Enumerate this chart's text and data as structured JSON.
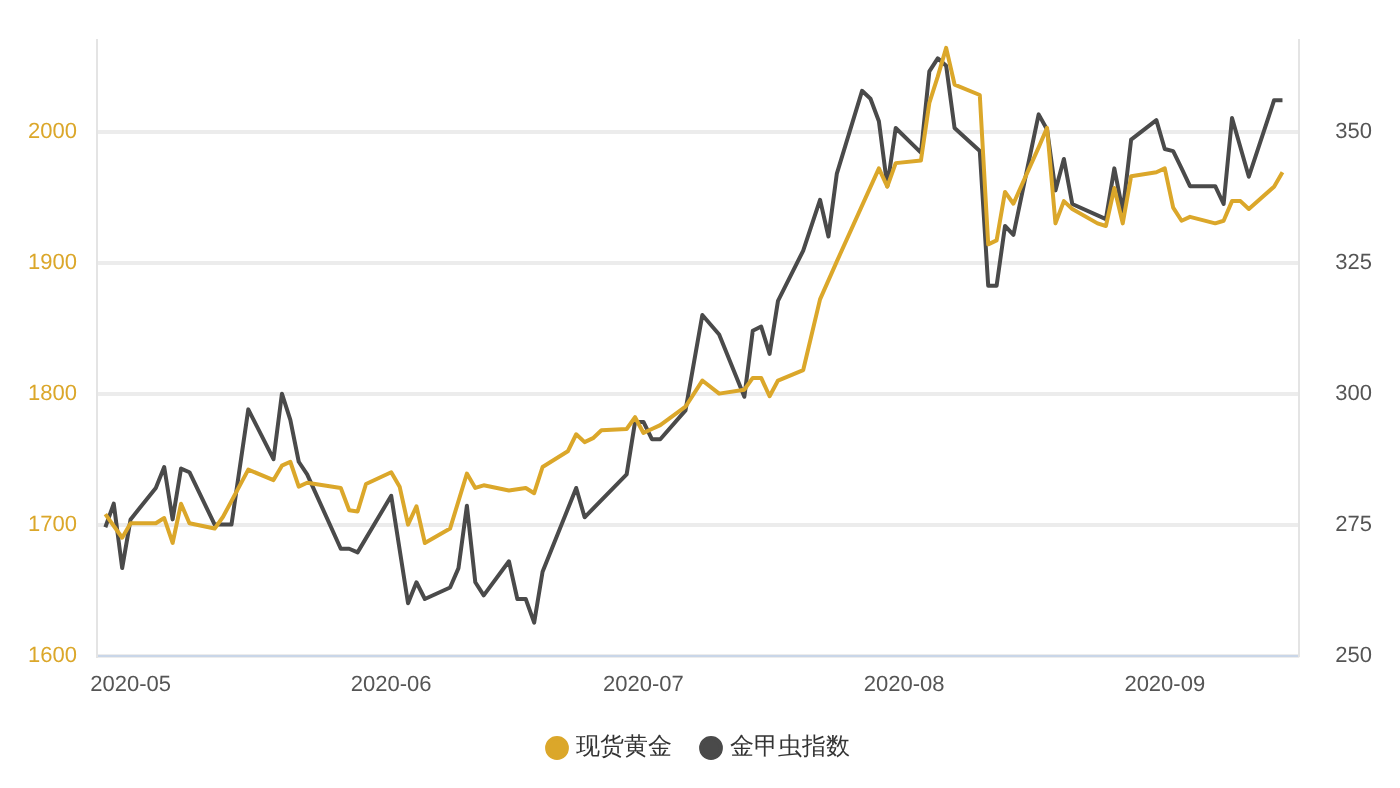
{
  "chart_data": {
    "type": "line",
    "xlim": [
      "2020-04-27",
      "2020-09-17"
    ],
    "xticks": [
      {
        "value": "2020-05-01",
        "label": "2020-05"
      },
      {
        "value": "2020-06-01",
        "label": "2020-06"
      },
      {
        "value": "2020-07-01",
        "label": "2020-07"
      },
      {
        "value": "2020-08-01",
        "label": "2020-08"
      },
      {
        "value": "2020-09-01",
        "label": "2020-09"
      }
    ],
    "ylim": [
      1600,
      2070
    ],
    "yticks": [
      1600,
      1700,
      1800,
      1900,
      2000
    ],
    "y2lim": [
      250,
      367.5
    ],
    "y2ticks": [
      250,
      275,
      300,
      325,
      350
    ],
    "grid": "y",
    "legend": "bottom",
    "marker": "none",
    "line_style": "solid",
    "series": [
      {
        "name": "现货黄金",
        "color": "#dba72a",
        "x": [
          "2020-04-28",
          "2020-04-30",
          "2020-05-01",
          "2020-05-04",
          "2020-05-05",
          "2020-05-06",
          "2020-05-07",
          "2020-05-08",
          "2020-05-11",
          "2020-05-12",
          "2020-05-15",
          "2020-05-18",
          "2020-05-19",
          "2020-05-20",
          "2020-05-21",
          "2020-05-22",
          "2020-05-26",
          "2020-05-27",
          "2020-05-28",
          "2020-05-29",
          "2020-06-01",
          "2020-06-02",
          "2020-06-03",
          "2020-06-04",
          "2020-06-05",
          "2020-06-08",
          "2020-06-10",
          "2020-06-11",
          "2020-06-12",
          "2020-06-15",
          "2020-06-17",
          "2020-06-18",
          "2020-06-19",
          "2020-06-22",
          "2020-06-23",
          "2020-06-24",
          "2020-06-25",
          "2020-06-26",
          "2020-06-29",
          "2020-06-30",
          "2020-07-01",
          "2020-07-02",
          "2020-07-03",
          "2020-07-06",
          "2020-07-08",
          "2020-07-10",
          "2020-07-13",
          "2020-07-14",
          "2020-07-15",
          "2020-07-16",
          "2020-07-17",
          "2020-07-20",
          "2020-07-22",
          "2020-07-24",
          "2020-07-29",
          "2020-07-30",
          "2020-07-31",
          "2020-08-03",
          "2020-08-04",
          "2020-08-05",
          "2020-08-06",
          "2020-08-07",
          "2020-08-10",
          "2020-08-11",
          "2020-08-12",
          "2020-08-13",
          "2020-08-14",
          "2020-08-17",
          "2020-08-18",
          "2020-08-19",
          "2020-08-20",
          "2020-08-21",
          "2020-08-24",
          "2020-08-25",
          "2020-08-26",
          "2020-08-27",
          "2020-08-28",
          "2020-08-31",
          "2020-09-01",
          "2020-09-02",
          "2020-09-03",
          "2020-09-04",
          "2020-09-07",
          "2020-09-08",
          "2020-09-09",
          "2020-09-10",
          "2020-09-11",
          "2020-09-14",
          "2020-09-15"
        ],
        "values": [
          1708,
          1690,
          1701,
          1701,
          1705,
          1686,
          1716,
          1701,
          1697,
          1706,
          1742,
          1734,
          1745,
          1748,
          1729,
          1732,
          1728,
          1711,
          1710,
          1731,
          1740,
          1729,
          1700,
          1714,
          1686,
          1697,
          1739,
          1728,
          1730,
          1726,
          1728,
          1724,
          1744,
          1756,
          1769,
          1763,
          1766,
          1772,
          1773,
          1782,
          1770,
          1773,
          1776,
          1790,
          1810,
          1800,
          1803,
          1812,
          1812,
          1798,
          1810,
          1818,
          1872,
          1901,
          1972,
          1958,
          1976,
          1978,
          2022,
          2042,
          2064,
          2036,
          2028,
          1914,
          1917,
          1954,
          1945,
          1988,
          2003,
          1930,
          1947,
          1941,
          1930,
          1928,
          1957,
          1930,
          1966,
          1969,
          1972,
          1942,
          1932,
          1935,
          1930,
          1932,
          1947,
          1947,
          1941,
          1958,
          1969
        ]
      },
      {
        "name": "金甲虫指数",
        "color": "#4a4a4a",
        "axis": "y2",
        "x": [
          "2020-04-28",
          "2020-04-29",
          "2020-04-30",
          "2020-05-01",
          "2020-05-04",
          "2020-05-05",
          "2020-05-06",
          "2020-05-07",
          "2020-05-08",
          "2020-05-11",
          "2020-05-13",
          "2020-05-15",
          "2020-05-18",
          "2020-05-19",
          "2020-05-20",
          "2020-05-21",
          "2020-05-22",
          "2020-05-26",
          "2020-05-27",
          "2020-05-28",
          "2020-06-01",
          "2020-06-03",
          "2020-06-04",
          "2020-06-05",
          "2020-06-08",
          "2020-06-09",
          "2020-06-10",
          "2020-06-11",
          "2020-06-12",
          "2020-06-15",
          "2020-06-16",
          "2020-06-17",
          "2020-06-18",
          "2020-06-19",
          "2020-06-22",
          "2020-06-23",
          "2020-06-24",
          "2020-06-29",
          "2020-06-30",
          "2020-07-01",
          "2020-07-02",
          "2020-07-03",
          "2020-07-06",
          "2020-07-08",
          "2020-07-10",
          "2020-07-13",
          "2020-07-14",
          "2020-07-15",
          "2020-07-16",
          "2020-07-17",
          "2020-07-20",
          "2020-07-22",
          "2020-07-23",
          "2020-07-24",
          "2020-07-27",
          "2020-07-28",
          "2020-07-29",
          "2020-07-30",
          "2020-07-31",
          "2020-08-03",
          "2020-08-04",
          "2020-08-05",
          "2020-08-06",
          "2020-08-07",
          "2020-08-10",
          "2020-08-11",
          "2020-08-12",
          "2020-08-13",
          "2020-08-14",
          "2020-08-17",
          "2020-08-18",
          "2020-08-19",
          "2020-08-20",
          "2020-08-21",
          "2020-08-25",
          "2020-08-26",
          "2020-08-27",
          "2020-08-28",
          "2020-08-31",
          "2020-09-01",
          "2020-09-02",
          "2020-09-03",
          "2020-09-04",
          "2020-09-07",
          "2020-09-08",
          "2020-09-09",
          "2020-09-11",
          "2020-09-14",
          "2020-09-15"
        ],
        "values": [
          274.5,
          279,
          266.7,
          276,
          282,
          286,
          276,
          285.7,
          285,
          275,
          275,
          297,
          287.5,
          300,
          295,
          287,
          284.6,
          270.4,
          270.4,
          269.7,
          280.5,
          260,
          264,
          260.8,
          263,
          266.7,
          278.6,
          264,
          261.5,
          268,
          260.8,
          260.8,
          256.3,
          266,
          278,
          282,
          276.4,
          284.6,
          294.6,
          294.6,
          291.3,
          291.3,
          296.8,
          315,
          311.3,
          299.4,
          312,
          312.8,
          307.6,
          317.7,
          327.3,
          337,
          330,
          342,
          357.8,
          356.3,
          352,
          339.6,
          350.7,
          346,
          361.5,
          364,
          362.6,
          350.7,
          346.3,
          320.6,
          320.6,
          332,
          330.3,
          353.3,
          350.4,
          338.8,
          344.8,
          336.2,
          333.3,
          343,
          334.8,
          348.5,
          352.2,
          346.7,
          346.3,
          343,
          339.6,
          339.6,
          336.2,
          352.6,
          341.4,
          356,
          356
        ]
      }
    ]
  }
}
